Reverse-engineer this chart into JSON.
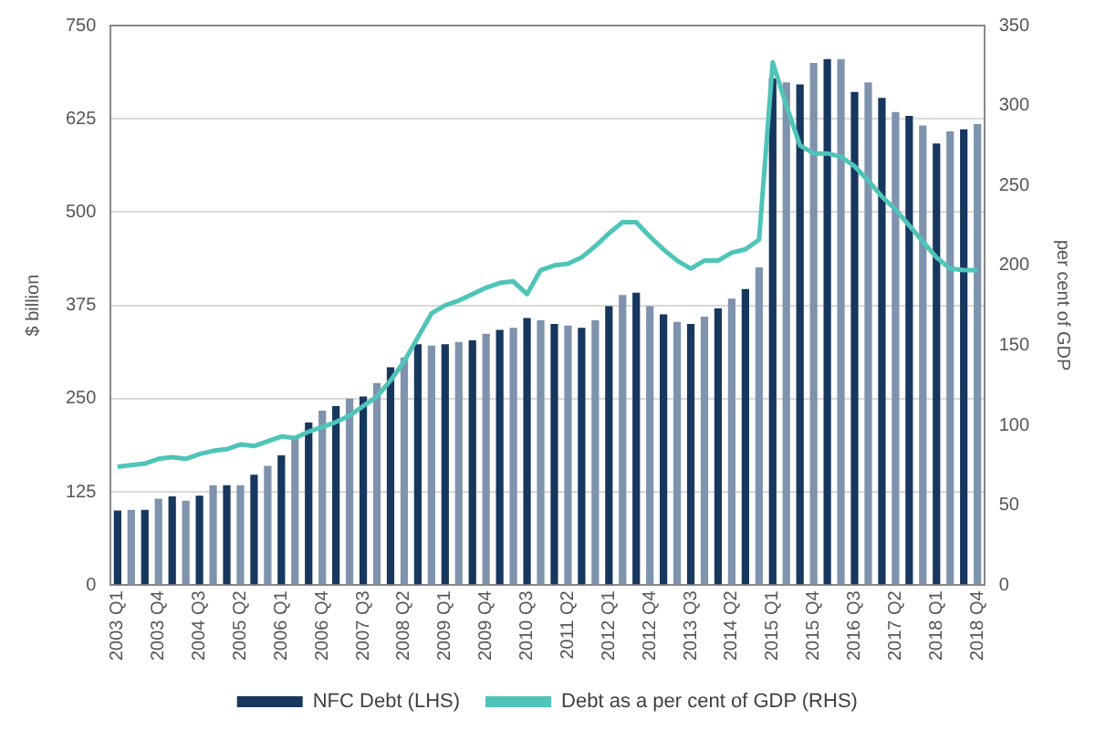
{
  "chart_data": {
    "type": "bar",
    "ylabel": "$ billion",
    "y2label": "per cent of GDP",
    "categories": [
      "2003 Q1",
      null,
      null,
      "2003 Q4",
      null,
      null,
      "2004 Q3",
      null,
      null,
      "2005 Q2",
      null,
      null,
      "2006 Q1",
      null,
      null,
      "2006 Q4",
      null,
      null,
      "2007 Q3",
      null,
      null,
      "2008 Q2",
      null,
      null,
      "2009 Q1",
      null,
      null,
      "2009 Q4",
      null,
      null,
      "2010 Q3",
      null,
      null,
      "2011 Q2",
      null,
      null,
      "2012 Q1",
      null,
      null,
      "2012 Q4",
      null,
      null,
      "2013 Q3",
      null,
      null,
      "2014 Q2",
      null,
      null,
      "2015 Q1",
      null,
      null,
      "2015 Q4",
      null,
      null,
      "2016 Q3",
      null,
      null,
      "2017 Q2",
      null,
      null,
      "2018 Q1",
      null,
      null,
      "2018 Q4"
    ],
    "series": [
      {
        "name": "NFC Debt (LHS)",
        "color": "#17375e",
        "colors": [
          "#17375e",
          "#7f93ad",
          "#17375e",
          "#7f93ad",
          "#17375e",
          "#7f93ad",
          "#17375e",
          "#7f93ad",
          "#17375e",
          "#7f93ad",
          "#17375e",
          "#7f93ad",
          "#17375e",
          "#7f93ad",
          "#17375e",
          "#7f93ad",
          "#17375e",
          "#7f93ad",
          "#17375e",
          "#7f93ad",
          "#17375e",
          "#7f93ad",
          "#17375e",
          "#7f93ad",
          "#17375e",
          "#7f93ad",
          "#17375e",
          "#7f93ad",
          "#17375e",
          "#7f93ad",
          "#17375e",
          "#7f93ad",
          "#17375e",
          "#7f93ad",
          "#17375e",
          "#7f93ad",
          "#17375e",
          "#7f93ad",
          "#17375e",
          "#7f93ad",
          "#17375e",
          "#7f93ad",
          "#17375e",
          "#7f93ad",
          "#17375e",
          "#7f93ad",
          "#17375e",
          "#7f93ad",
          "#17375e",
          "#7f93ad",
          "#17375e",
          "#7f93ad",
          "#17375e",
          "#7f93ad",
          "#17375e",
          "#7f93ad",
          "#17375e",
          "#7f93ad",
          "#17375e",
          "#7f93ad",
          "#17375e",
          "#7f93ad",
          "#17375e",
          "#7f93ad"
        ],
        "values": [
          100,
          101,
          101,
          116,
          119,
          113,
          120,
          134,
          134,
          134,
          148,
          160,
          174,
          197,
          218,
          234,
          240,
          250,
          253,
          271,
          292,
          305,
          323,
          321,
          323,
          326,
          328,
          337,
          342,
          345,
          358,
          355,
          350,
          348,
          345,
          355,
          374,
          389,
          392,
          374,
          363,
          353,
          350,
          360,
          371,
          384,
          397,
          426,
          679,
          674,
          671,
          700,
          705,
          705,
          661,
          674,
          653,
          634,
          629,
          616,
          592,
          608,
          611,
          618
        ]
      },
      {
        "name": "Debt as a per cent of GDP (RHS)",
        "type": "line",
        "axis": "y2",
        "color": "#4fc4b8",
        "marker": "none",
        "values": [
          74,
          75,
          76,
          79,
          80,
          79,
          82,
          84,
          85,
          88,
          87,
          90,
          93,
          92,
          96,
          99,
          102,
          106,
          112,
          118,
          128,
          140,
          155,
          170,
          175,
          178,
          182,
          186,
          189,
          190,
          182,
          197,
          200,
          201,
          205,
          212,
          220,
          227,
          227,
          218,
          210,
          203,
          198,
          203,
          203,
          208,
          210,
          216,
          327,
          300,
          275,
          270,
          270,
          268,
          262,
          253,
          243,
          235,
          225,
          215,
          205,
          198,
          197,
          197
        ]
      }
    ],
    "ylim": [
      0,
      750
    ],
    "yticks": [
      0,
      125,
      250,
      375,
      500,
      625,
      750
    ],
    "y2lim": [
      0,
      350
    ],
    "y2ticks": [
      0,
      50,
      100,
      150,
      200,
      250,
      300,
      350
    ],
    "grid": "y",
    "legend": "bottom"
  }
}
